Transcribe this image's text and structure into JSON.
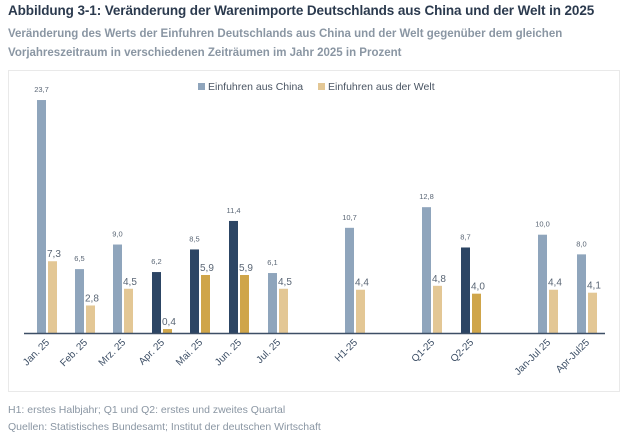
{
  "title": "Abbildung 3-1: Veränderung der Warenimporte Deutschlands aus China und der Welt in 2025",
  "subtitle_lines": [
    "Veränderung des Werts der Einfuhren Deutschlands aus China und der Welt gegenüber dem gleichen",
    "Vorjahreszeitraum in verschiedenen Zeiträumen im Jahr 2025 in Prozent"
  ],
  "footnotes": [
    "H1: erstes Halbjahr; Q1 und Q2: erstes und zweites Quartal",
    "Quellen: Statistisches Bundesamt; Institut der deutschen Wirtschaft"
  ],
  "colors": {
    "china": "#8fa5bc",
    "world": "#e3c795",
    "china_highlight": "#2c4564",
    "world_highlight": "#cfa54a",
    "axis": "#3d4f66",
    "label": "#5a6675"
  },
  "chart_data": {
    "type": "bar",
    "title": "",
    "xlabel": "",
    "ylabel": "",
    "ylim": [
      0,
      25
    ],
    "grid": false,
    "legend_position": "top-center",
    "categories": [
      "Jan. 25",
      "Feb. 25",
      "Mrz. 25",
      "Apr. 25",
      "Mai. 25",
      "Jun. 25",
      "Jul. 25",
      "H1-25",
      "Q1-25",
      "Q2-25",
      "Jan-Jul 25",
      "Apr-Jul25"
    ],
    "highlighted_categories": [
      "Apr. 25",
      "Mai. 25",
      "Jun. 25",
      "Q2-25"
    ],
    "series": [
      {
        "name": "Einfuhren aus China",
        "values": [
          23.7,
          6.5,
          9.0,
          6.2,
          8.5,
          11.4,
          6.1,
          10.7,
          12.8,
          8.7,
          10.0,
          8.0
        ],
        "labels": [
          "23,7",
          "6,5",
          "9,0",
          "6,2",
          "8,5",
          "11,4",
          "6,1",
          "10,7",
          "12,8",
          "8,7",
          "10,0",
          "8,0"
        ]
      },
      {
        "name": "Einfuhren aus der Welt",
        "values": [
          7.3,
          2.8,
          4.5,
          0.4,
          5.9,
          5.9,
          4.5,
          4.4,
          4.8,
          4.0,
          4.4,
          4.1
        ],
        "labels": [
          "7,3",
          "2,8",
          "4,5",
          "0,4",
          "5,9",
          "5,9",
          "4,5",
          "4,4",
          "4,8",
          "4,0",
          "4,4",
          "4,1"
        ]
      }
    ]
  }
}
